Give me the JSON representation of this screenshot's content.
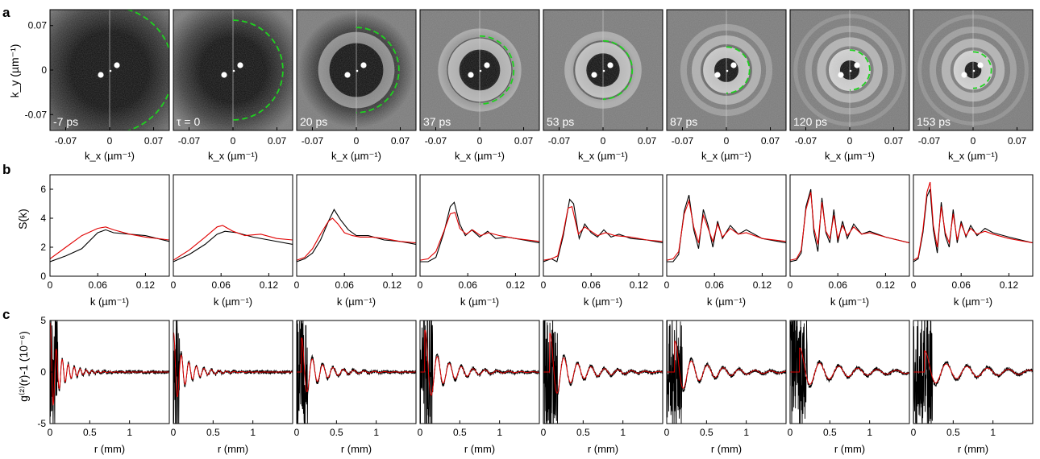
{
  "figure": {
    "panel_letters": [
      "a",
      "b",
      "c"
    ],
    "colors": {
      "measured": "#000000",
      "model": "#e00000",
      "ring_guide": "#1fd11f",
      "image_background": "#7a7a7a",
      "image_center": "#0b0b0b",
      "ring_bright": "#e2e2e2"
    }
  },
  "panel_a": {
    "ylabel": "k_y (µm⁻¹)",
    "xlabel": "k_x (µm⁻¹)",
    "ticks": [
      "-0.07",
      "0",
      "0.07"
    ],
    "frames": [
      {
        "label": "-7 ps",
        "guide_radius_fraction": 1.04,
        "dark_radius_fraction": 0.78,
        "ring_count": 0,
        "ring_strength": 0.05
      },
      {
        "label": "τ = 0",
        "guide_radius_fraction": 0.82,
        "dark_radius_fraction": 0.66,
        "ring_count": 0,
        "ring_strength": 0.08
      },
      {
        "label": "20 ps",
        "guide_radius_fraction": 0.7,
        "dark_radius_fraction": 0.52,
        "ring_count": 1,
        "ring_strength": 0.55
      },
      {
        "label": "37 ps",
        "guide_radius_fraction": 0.56,
        "dark_radius_fraction": 0.36,
        "ring_count": 2,
        "ring_strength": 0.75
      },
      {
        "label": "53 ps",
        "guide_radius_fraction": 0.48,
        "dark_radius_fraction": 0.3,
        "ring_count": 2,
        "ring_strength": 0.8
      },
      {
        "label": "87 ps",
        "guide_radius_fraction": 0.38,
        "dark_radius_fraction": 0.24,
        "ring_count": 3,
        "ring_strength": 0.85
      },
      {
        "label": "120 ps",
        "guide_radius_fraction": 0.33,
        "dark_radius_fraction": 0.2,
        "ring_count": 4,
        "ring_strength": 0.9
      },
      {
        "label": "153 ps",
        "guide_radius_fraction": 0.3,
        "dark_radius_fraction": 0.18,
        "ring_count": 4,
        "ring_strength": 0.9
      }
    ]
  },
  "chart_data": [
    {
      "type": "line",
      "panel": "b",
      "ylabel": "S(k)",
      "xlabel": "k (µm⁻¹)",
      "xlim": [
        0,
        0.15
      ],
      "ylim": [
        0,
        7
      ],
      "xticks": [
        "0",
        "0.06",
        "0.12"
      ],
      "yticks": [
        "0",
        "2",
        "4",
        "6"
      ],
      "series": [
        {
          "color": "black",
          "per_frame": [
            {
              "k": [
                0,
                0.02,
                0.04,
                0.06,
                0.07,
                0.08,
                0.1,
                0.12,
                0.15
              ],
              "S": [
                1.0,
                1.4,
                1.9,
                3.0,
                3.2,
                3.0,
                2.9,
                2.8,
                2.4
              ]
            },
            {
              "k": [
                0,
                0.02,
                0.04,
                0.055,
                0.065,
                0.08,
                0.1,
                0.12,
                0.15
              ],
              "S": [
                1.0,
                1.5,
                2.2,
                2.9,
                3.1,
                3.0,
                2.7,
                2.5,
                2.2
              ]
            },
            {
              "k": [
                0,
                0.01,
                0.02,
                0.03,
                0.04,
                0.047,
                0.055,
                0.065,
                0.075,
                0.09,
                0.11,
                0.13,
                0.15
              ],
              "S": [
                1.0,
                1.2,
                1.6,
                2.5,
                3.8,
                4.6,
                3.9,
                3.2,
                2.8,
                2.8,
                2.5,
                2.4,
                2.2
              ]
            },
            {
              "k": [
                0,
                0.01,
                0.02,
                0.03,
                0.038,
                0.043,
                0.05,
                0.057,
                0.065,
                0.075,
                0.085,
                0.095,
                0.11,
                0.13,
                0.15
              ],
              "S": [
                1.0,
                1.0,
                1.3,
                3.0,
                4.8,
                5.1,
                3.6,
                2.8,
                3.2,
                2.7,
                3.1,
                2.6,
                2.7,
                2.5,
                2.3
              ]
            },
            {
              "k": [
                0,
                0.01,
                0.017,
                0.025,
                0.033,
                0.038,
                0.045,
                0.052,
                0.06,
                0.068,
                0.076,
                0.085,
                0.095,
                0.11,
                0.13,
                0.15
              ],
              "S": [
                1.0,
                1.2,
                1.0,
                2.8,
                5.3,
                5.0,
                2.6,
                3.6,
                3.0,
                2.7,
                3.2,
                2.7,
                2.9,
                2.6,
                2.5,
                2.3
              ]
            },
            {
              "k": [
                0,
                0.008,
                0.015,
                0.022,
                0.028,
                0.034,
                0.04,
                0.046,
                0.052,
                0.058,
                0.064,
                0.07,
                0.08,
                0.09,
                0.1,
                0.12,
                0.15
              ],
              "S": [
                1.0,
                1.0,
                1.5,
                4.5,
                5.6,
                3.2,
                1.9,
                4.6,
                3.5,
                2.0,
                3.8,
                2.6,
                3.5,
                2.9,
                3.2,
                2.6,
                2.3
              ]
            },
            {
              "k": [
                0,
                0.008,
                0.014,
                0.02,
                0.026,
                0.03,
                0.035,
                0.04,
                0.045,
                0.05,
                0.055,
                0.06,
                0.066,
                0.072,
                0.08,
                0.09,
                0.1,
                0.12,
                0.15
              ],
              "S": [
                1.0,
                1.1,
                1.6,
                4.8,
                6.0,
                3.0,
                1.7,
                5.4,
                3.0,
                2.3,
                4.6,
                2.3,
                3.8,
                2.6,
                3.6,
                2.9,
                3.1,
                2.7,
                2.3
              ]
            },
            {
              "k": [
                0,
                0.006,
                0.012,
                0.017,
                0.021,
                0.025,
                0.03,
                0.035,
                0.04,
                0.045,
                0.05,
                0.055,
                0.06,
                0.066,
                0.072,
                0.08,
                0.09,
                0.1,
                0.12,
                0.15
              ],
              "S": [
                1.0,
                1.2,
                3.0,
                5.5,
                6.0,
                3.2,
                1.6,
                5.1,
                2.8,
                2.0,
                4.6,
                2.3,
                3.8,
                2.7,
                3.5,
                2.8,
                3.3,
                3.0,
                2.7,
                2.3
              ]
            }
          ]
        },
        {
          "color": "red",
          "per_frame": [
            {
              "k": [
                0,
                0.02,
                0.04,
                0.06,
                0.07,
                0.08,
                0.1,
                0.12,
                0.15
              ],
              "S": [
                1.2,
                2.0,
                2.8,
                3.3,
                3.4,
                3.2,
                2.9,
                2.7,
                2.5
              ]
            },
            {
              "k": [
                0,
                0.02,
                0.04,
                0.055,
                0.062,
                0.075,
                0.09,
                0.11,
                0.13,
                0.15
              ],
              "S": [
                1.1,
                1.8,
                2.7,
                3.4,
                3.5,
                3.1,
                2.8,
                2.9,
                2.6,
                2.5
              ]
            },
            {
              "k": [
                0,
                0.01,
                0.02,
                0.03,
                0.04,
                0.045,
                0.052,
                0.06,
                0.07,
                0.08,
                0.095,
                0.11,
                0.13,
                0.15
              ],
              "S": [
                1.1,
                1.3,
                1.9,
                2.9,
                3.8,
                4.0,
                3.6,
                3.0,
                2.8,
                2.7,
                2.7,
                2.6,
                2.4,
                2.3
              ]
            },
            {
              "k": [
                0,
                0.01,
                0.02,
                0.03,
                0.038,
                0.044,
                0.05,
                0.058,
                0.066,
                0.076,
                0.086,
                0.1,
                0.12,
                0.15
              ],
              "S": [
                1.1,
                1.2,
                1.7,
                3.1,
                4.3,
                4.4,
                3.3,
                2.9,
                3.2,
                2.8,
                3.0,
                2.8,
                2.6,
                2.4
              ]
            },
            {
              "k": [
                0,
                0.01,
                0.018,
                0.025,
                0.031,
                0.036,
                0.044,
                0.052,
                0.06,
                0.068,
                0.078,
                0.09,
                0.11,
                0.13,
                0.15
              ],
              "S": [
                1.1,
                1.2,
                1.4,
                3.0,
                4.7,
                4.8,
                2.9,
                3.4,
                3.1,
                2.8,
                3.0,
                2.8,
                2.7,
                2.5,
                2.4
              ]
            },
            {
              "k": [
                0,
                0.008,
                0.015,
                0.022,
                0.028,
                0.034,
                0.04,
                0.046,
                0.052,
                0.058,
                0.064,
                0.07,
                0.08,
                0.09,
                0.1,
                0.12,
                0.15
              ],
              "S": [
                1.1,
                1.2,
                1.7,
                4.3,
                5.2,
                3.4,
                2.3,
                4.2,
                3.3,
                2.4,
                3.6,
                2.7,
                3.3,
                2.9,
                3.0,
                2.6,
                2.4
              ]
            },
            {
              "k": [
                0,
                0.008,
                0.014,
                0.02,
                0.026,
                0.03,
                0.035,
                0.04,
                0.045,
                0.05,
                0.055,
                0.06,
                0.066,
                0.072,
                0.08,
                0.09,
                0.1,
                0.12,
                0.15
              ],
              "S": [
                1.1,
                1.2,
                1.8,
                4.6,
                5.8,
                3.3,
                2.2,
                5.1,
                3.1,
                2.6,
                4.2,
                2.6,
                3.5,
                2.8,
                3.4,
                2.9,
                3.0,
                2.7,
                2.3
              ]
            },
            {
              "k": [
                0,
                0.006,
                0.012,
                0.017,
                0.021,
                0.025,
                0.03,
                0.035,
                0.04,
                0.045,
                0.05,
                0.055,
                0.06,
                0.066,
                0.072,
                0.08,
                0.09,
                0.1,
                0.12,
                0.15
              ],
              "S": [
                1.1,
                1.3,
                3.2,
                5.8,
                6.5,
                3.5,
                2.0,
                4.8,
                3.0,
                2.3,
                4.3,
                2.5,
                3.6,
                2.8,
                3.3,
                2.9,
                3.1,
                2.9,
                2.6,
                2.3
              ]
            }
          ]
        }
      ]
    },
    {
      "type": "line",
      "panel": "c",
      "ylabel": "g⁽²⁾(r)-1 (10⁻⁶)",
      "xlabel": "r (mm)",
      "xlim": [
        0,
        1.5
      ],
      "ylim": [
        -5,
        5
      ],
      "xticks": [
        "0",
        "0.5",
        "1"
      ],
      "yticks": [
        "-5",
        "0",
        "5"
      ],
      "frames": [
        {
          "r0": 0.0,
          "amp": 5.0,
          "wavelength": 0.075,
          "decay": 0.18,
          "noise_end": 0.1
        },
        {
          "r0": 0.0,
          "amp": 4.0,
          "wavelength": 0.095,
          "decay": 0.22,
          "noise_end": 0.08
        },
        {
          "r0": 0.06,
          "amp": 3.5,
          "wavelength": 0.13,
          "decay": 0.28,
          "noise_end": 0.14
        },
        {
          "r0": 0.06,
          "amp": 4.3,
          "wavelength": 0.15,
          "decay": 0.32,
          "noise_end": 0.16
        },
        {
          "r0": 0.08,
          "amp": 4.0,
          "wavelength": 0.17,
          "decay": 0.38,
          "noise_end": 0.18
        },
        {
          "r0": 0.1,
          "amp": 3.2,
          "wavelength": 0.2,
          "decay": 0.45,
          "noise_end": 0.2
        },
        {
          "r0": 0.12,
          "amp": 2.5,
          "wavelength": 0.24,
          "decay": 0.6,
          "noise_end": 0.22
        },
        {
          "r0": 0.14,
          "amp": 2.2,
          "wavelength": 0.26,
          "decay": 0.75,
          "noise_end": 0.24
        }
      ]
    }
  ]
}
